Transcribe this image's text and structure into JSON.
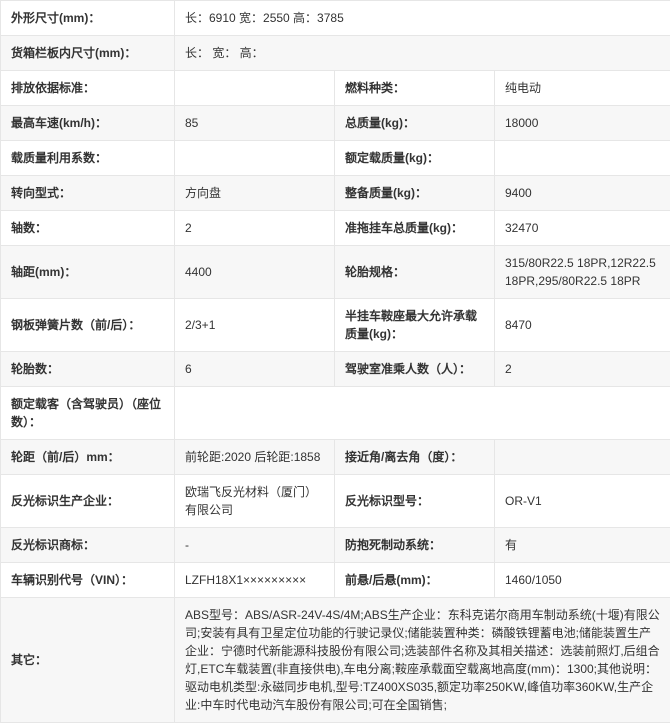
{
  "rows": [
    {
      "type": "full",
      "label": "外形尺寸(mm)：",
      "value": "长：6910 宽：2550 高：3785"
    },
    {
      "type": "full",
      "label": "货箱栏板内尺寸(mm)：",
      "value": "长： 宽： 高："
    },
    {
      "type": "pair",
      "l1": "排放依据标准：",
      "v1": "",
      "l2": "燃料种类：",
      "v2": "纯电动"
    },
    {
      "type": "pair",
      "l1": "最高车速(km/h)：",
      "v1": "85",
      "l2": "总质量(kg)：",
      "v2": "18000"
    },
    {
      "type": "pair",
      "l1": "载质量利用系数：",
      "v1": "",
      "l2": "额定载质量(kg)：",
      "v2": ""
    },
    {
      "type": "pair",
      "l1": "转向型式：",
      "v1": "方向盘",
      "l2": "整备质量(kg)：",
      "v2": "9400"
    },
    {
      "type": "pair",
      "l1": "轴数：",
      "v1": "2",
      "l2": "准拖挂车总质量(kg)：",
      "v2": "32470"
    },
    {
      "type": "pair",
      "l1": "轴距(mm)：",
      "v1": "4400",
      "l2": "轮胎规格：",
      "v2": "315/80R22.5 18PR,12R22.5 18PR,295/80R22.5 18PR"
    },
    {
      "type": "pair",
      "l1": "钢板弹簧片数（前/后）：",
      "v1": "2/3+1",
      "l2": "半挂车鞍座最大允许承载质量(kg)：",
      "v2": "8470"
    },
    {
      "type": "pair",
      "l1": "轮胎数：",
      "v1": "6",
      "l2": "驾驶室准乘人数（人）：",
      "v2": "2"
    },
    {
      "type": "full",
      "label": "额定载客（含驾驶员）（座位数）：",
      "value": ""
    },
    {
      "type": "pair",
      "l1": "轮距（前/后）mm：",
      "v1": "前轮距:2020 后轮距:1858",
      "l2": "接近角/离去角（度）：",
      "v2": ""
    },
    {
      "type": "pair",
      "l1": "反光标识生产企业：",
      "v1": "欧瑞飞反光材料（厦门）有限公司",
      "l2": "反光标识型号：",
      "v2": "OR-V1"
    },
    {
      "type": "pair",
      "l1": "反光标识商标：",
      "v1": "-",
      "l2": "防抱死制动系统：",
      "v2": "有"
    },
    {
      "type": "pair",
      "l1": "车辆识别代号（VIN）：",
      "v1": "LZFH18X1×××××××××",
      "l2": "前悬/后悬(mm)：",
      "v2": "1460/1050"
    },
    {
      "type": "full",
      "label": "其它：",
      "value": "ABS型号：ABS/ASR-24V-4S/4M;ABS生产企业：东科克诺尔商用车制动系统(十堰)有限公司;安装有具有卫星定位功能的行驶记录仪;储能装置种类：磷酸铁锂蓄电池;储能装置生产企业：宁德时代新能源科技股份有限公司;选装部件名称及其相关描述：选装前照灯,后组合灯,ETC车载装置(非直接供电),车电分离;鞍座承载面空载离地高度(mm)：1300;其他说明：驱动电机类型:永磁同步电机,型号:TZ400XS035,额定功率250KW,峰值功率360KW,生产企业:中车时代电动汽车股份有限公司;可在全国销售;"
    }
  ]
}
